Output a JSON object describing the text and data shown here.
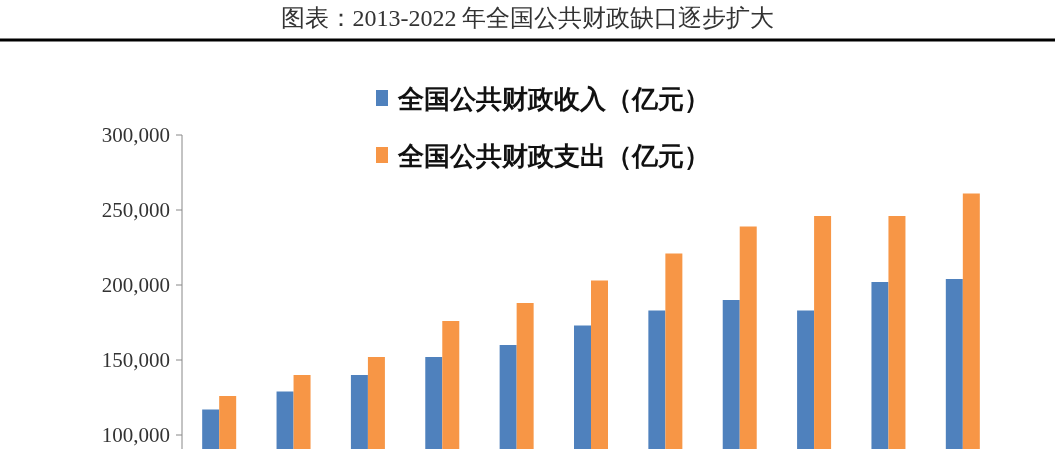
{
  "chart_data": {
    "type": "bar",
    "title": "图表：2013-2022 年全国公共财政缺口逐步扩大",
    "categories": [
      null,
      null,
      null,
      null,
      null,
      null,
      null,
      null,
      null,
      null,
      null
    ],
    "series": [
      {
        "name": "全国公共财政收入（亿元）",
        "color": "#4f81bd",
        "values": [
          117000,
          129000,
          140000,
          152000,
          160000,
          173000,
          183000,
          190000,
          183000,
          202000,
          204000
        ]
      },
      {
        "name": "全国公共财政支出（亿元）",
        "color": "#f79646",
        "values": [
          126000,
          140000,
          152000,
          176000,
          188000,
          203000,
          221000,
          239000,
          246000,
          246000,
          261000
        ]
      }
    ],
    "ylim": [
      90000,
      300000
    ],
    "yticks": [
      {
        "value": 100000,
        "label": "100,000"
      },
      {
        "value": 150000,
        "label": "150,000"
      },
      {
        "value": 200000,
        "label": "200,000"
      },
      {
        "value": 250000,
        "label": "250,000"
      },
      {
        "value": 300000,
        "label": "300,000"
      }
    ],
    "legend": "top",
    "grid": false
  }
}
